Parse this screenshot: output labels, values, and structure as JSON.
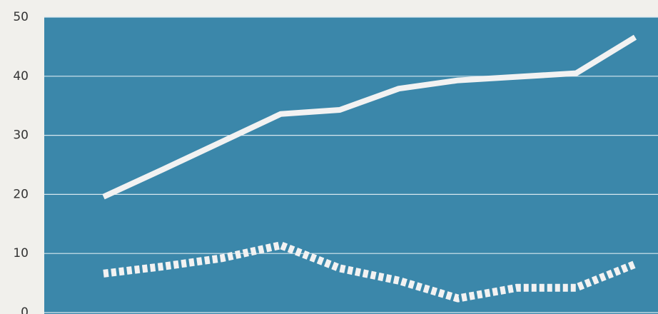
{
  "chart_data": {
    "type": "line",
    "categories": [
      null,
      null,
      null,
      null,
      null,
      null,
      null,
      null,
      null,
      null
    ],
    "series": [
      {
        "color": "#f2f2f2",
        "style": "solid",
        "values": [
          19.6,
          24.2,
          28.9,
          33.6,
          34.3,
          37.9,
          39.3,
          39.9,
          40.5,
          46.6
        ]
      },
      {
        "color": "#f2f2f2",
        "style": "dotted",
        "values": [
          6.6,
          7.8,
          9.2,
          11.4,
          7.5,
          5.4,
          2.4,
          4.2,
          4.2,
          8.2
        ]
      }
    ],
    "ylim": [
      0,
      50
    ],
    "yticks": [
      0,
      10,
      20,
      30,
      40,
      50
    ],
    "grid": true,
    "background": "#3b87aa"
  }
}
